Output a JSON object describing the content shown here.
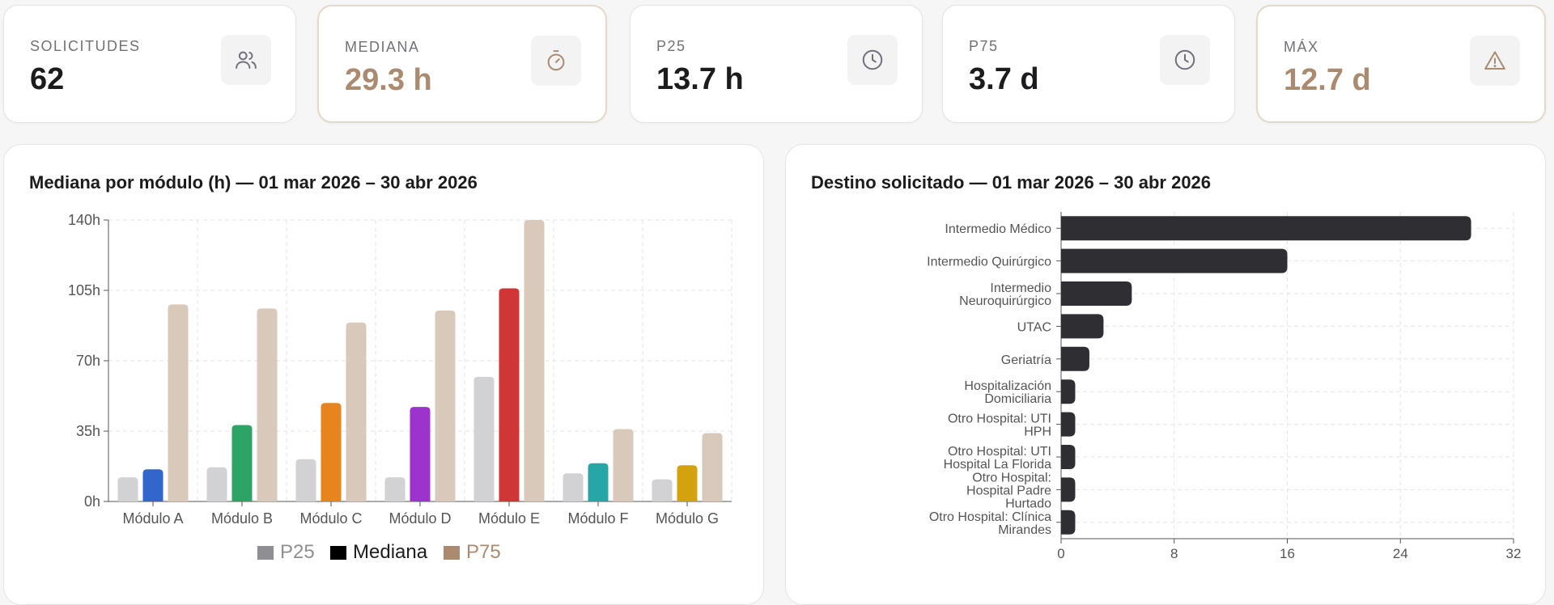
{
  "kpis": [
    {
      "label": "SOLICITUDES",
      "value": "62",
      "icon": "users-icon",
      "accent": false
    },
    {
      "label": "MEDIANA",
      "value": "29.3 h",
      "icon": "stopwatch-icon",
      "accent": true
    },
    {
      "label": "P25",
      "value": "13.7 h",
      "icon": "clock-icon",
      "accent": false
    },
    {
      "label": "P75",
      "value": "3.7 d",
      "icon": "clock-icon",
      "accent": false
    },
    {
      "label": "MÁX",
      "value": "12.7 d",
      "icon": "alert-triangle-icon",
      "accent": true
    }
  ],
  "colors": {
    "accent": "#ab8b70",
    "p25": "#d2d2d4",
    "p75": "#d9c9bb",
    "bar_dark": "#2f2f33",
    "legend_p25": "#8e8e93",
    "legend_mediana": "#000000",
    "legend_p75": "#ab8b70"
  },
  "left_chart_title": "Mediana por módulo (h) — 01 mar 2026 – 30 abr 2026",
  "right_chart_title": "Destino solicitado — 01 mar 2026 – 30 abr 2026",
  "chart_data": [
    {
      "type": "bar",
      "title": "Mediana por módulo (h) — 01 mar 2026 – 30 abr 2026",
      "categories": [
        "Módulo A",
        "Módulo B",
        "Módulo C",
        "Módulo D",
        "Módulo E",
        "Módulo F",
        "Módulo G"
      ],
      "series": [
        {
          "name": "P25",
          "values": [
            12,
            17,
            21,
            12,
            62,
            14,
            11
          ]
        },
        {
          "name": "Mediana",
          "values": [
            16,
            38,
            49,
            47,
            106,
            19,
            18
          ],
          "colors": [
            "#3366cc",
            "#2ca466",
            "#e8841d",
            "#9b33cc",
            "#d03636",
            "#27a6a6",
            "#d4a20f"
          ]
        },
        {
          "name": "P75",
          "values": [
            98,
            96,
            89,
            95,
            140,
            36,
            34
          ]
        }
      ],
      "y_ticks": [
        "0h",
        "35h",
        "70h",
        "105h",
        "140h"
      ],
      "ylim": [
        0,
        140
      ],
      "grid": true,
      "legend": "bottom"
    },
    {
      "type": "bar",
      "orientation": "horizontal",
      "title": "Destino solicitado — 01 mar 2026 – 30 abr 2026",
      "categories": [
        [
          "Intermedio Médico"
        ],
        [
          "Intermedio Quirúrgico"
        ],
        [
          "Intermedio",
          "Neuroquirúrgico"
        ],
        [
          "UTAC"
        ],
        [
          "Geriatría"
        ],
        [
          "Hospitalización",
          "Domiciliaria"
        ],
        [
          "Otro Hospital: UTI",
          "HPH"
        ],
        [
          "Otro Hospital: UTI",
          "Hospital La Florida"
        ],
        [
          "Otro Hospital:",
          "Hospital Padre",
          "Hurtado"
        ],
        [
          "Otro Hospital: Clínica",
          "Mirandes"
        ]
      ],
      "values": [
        29,
        16,
        5,
        3,
        2,
        1,
        1,
        1,
        1,
        1
      ],
      "x_ticks": [
        "0",
        "8",
        "16",
        "24",
        "32"
      ],
      "xlim": [
        0,
        32
      ],
      "grid": true
    }
  ]
}
